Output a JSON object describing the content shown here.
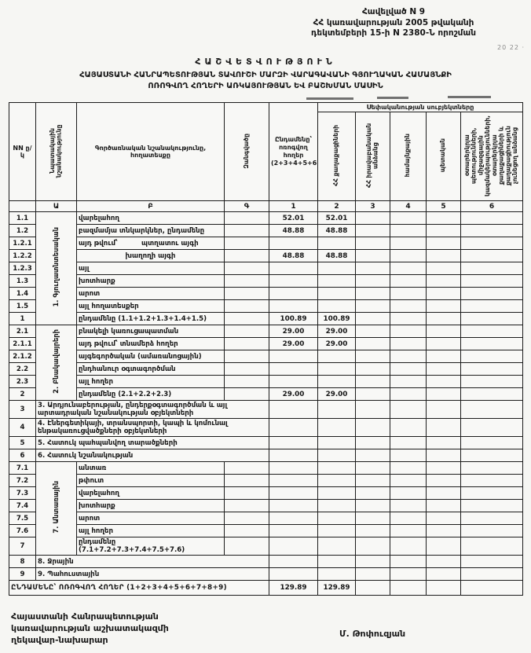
{
  "annex": {
    "lines": [
      "Հավելված N 9",
      "ՀՀ կառավարության 2005 թվականի",
      "դեկտեմբերի 15-ի N 2380-Ն որոշման"
    ],
    "note": "20 22 ·"
  },
  "title": {
    "heading": "ՀԱՇՎԵՏՎՈՒԹՅՈՒՆ",
    "line1": "ՀԱՅԱՍՏԱՆԻ ՀԱՆՐԱՊԵՏՈՒԹՅԱՆ ՏԱՎՈՒՇԻ ՄԱՐԶԻ ՎԱՐԱԳԱՎԱՆԻ ԳՅՈՒՂԱԿԱՆ ՀԱՄԱՅՆՔԻ",
    "line2": "ՈՌՈԳՎՈՂ ՀՈՂԵՐԻ ԱՌԿԱՅՈՒԹՅԱՆ ԵՎ ԲԱՇԽՄԱՆ ՄԱՍԻՆ"
  },
  "table": {
    "head": {
      "nn": "NN ը/կ",
      "purpose": "Նպատակային նշանակությունը",
      "functional": "Գործառնական նշանակությունը, հողատեսքը",
      "massif": "Զանգվածը",
      "total": "Ընդամենը՝ ոռոգվող հողեր (2+3+4+5+6)",
      "ownership_group": "Սեփականության սուբյեկտները",
      "owners": [
        "ՀՀ քաղաքացիների",
        "ՀՀ իրավաբանական անձանց",
        "համայնքային",
        "պետական",
        "օտարերկրյա պետությունների, միջազգային կազմակերպությունների, օտարերկրյա քաղաքացիների և քաղաքացիություն չունեցող անձանց"
      ],
      "index_row": [
        "",
        "Ա",
        "Բ",
        "Գ",
        "1",
        "2",
        "3",
        "4",
        "5",
        "6"
      ]
    },
    "rows": [
      {
        "no": "1.1",
        "section": {
          "label": "1. Գյուղատնտեսական",
          "rows": 9
        },
        "desc": "վարելահող",
        "v": [
          "52.01",
          "52.01"
        ]
      },
      {
        "no": "1.2",
        "desc": "բազմամյա տնկարկներ, ընդամենը",
        "v": [
          "48.88",
          "48.88"
        ]
      },
      {
        "no": "1.2.1",
        "prefix": "այդ թվում՝",
        "desc": "պտղատու այգի"
      },
      {
        "no": "1.2.2",
        "desc": "խաղողի այգի",
        "center": true,
        "v": [
          "48.88",
          "48.88"
        ]
      },
      {
        "no": "1.2.3",
        "desc": "այլ"
      },
      {
        "no": "1.3",
        "desc": "խոտհարք"
      },
      {
        "no": "1.4",
        "desc": "արոտ"
      },
      {
        "no": "1.5",
        "desc": "այլ հողատեսքեր"
      },
      {
        "no": "1",
        "desc": "ընդամենը (1.1+1.2+1.3+1.4+1.5)",
        "v": [
          "100.89",
          "100.89"
        ]
      },
      {
        "no": "2.1",
        "section": {
          "label": "2. Բնակավայրերի",
          "rows": 6
        },
        "desc": "բնակելի կառուցապատման",
        "v": [
          "29.00",
          "29.00"
        ]
      },
      {
        "no": "2.1.1",
        "desc": "այդ թվում՝ տնամերձ հողեր",
        "v": [
          "29.00",
          "29.00"
        ]
      },
      {
        "no": "2.1.2",
        "desc": "այգեգործական (ամառանոցային)"
      },
      {
        "no": "2.2",
        "desc": "ընդհանուր օգտագործման"
      },
      {
        "no": "2.3",
        "desc": "այլ հողեր"
      },
      {
        "no": "2",
        "desc": "ընդամենը (2.1+2.2+2.3)",
        "v": [
          "29.00",
          "29.00"
        ]
      },
      {
        "no": "3",
        "wide": true,
        "desc": "3. Արդյունաբերության, ընդերքօգտագործման և այլ արտադրական նշանակության օբյեկտների"
      },
      {
        "no": "4",
        "wide": true,
        "desc": "4. Էներգետիկայի, տրանսպորտի, կապի և կոմունալ ենթակառուցվածքների օբյեկտների"
      },
      {
        "no": "5",
        "wide": true,
        "desc": "5. Հատուկ պահպանվող տարածքների"
      },
      {
        "no": "6",
        "wide": true,
        "desc": "6. Հատուկ նշանակության"
      },
      {
        "no": "7.1",
        "section": {
          "label": "7. Անտառային",
          "rows": 7
        },
        "desc": "անտառ"
      },
      {
        "no": "7.2",
        "desc": "թփուտ"
      },
      {
        "no": "7.3",
        "desc": "վարելահող"
      },
      {
        "no": "7.4",
        "desc": "խոտհարք"
      },
      {
        "no": "7.5",
        "desc": "արոտ"
      },
      {
        "no": "7.6",
        "desc": "այլ հողեր"
      },
      {
        "no": "7",
        "desc": "ընդամենը (7.1+7.2+7.3+7.4+7.5+7.6)"
      },
      {
        "no": "8",
        "wide": true,
        "desc": "8. Ջրային"
      },
      {
        "no": "9",
        "wide": true,
        "desc": "9. Պահուստային"
      }
    ],
    "grand": {
      "label": "ԸՆԴԱՄԵՆԸ՝ ՈՌՈԳՎՈՂ ՀՈՂԵՐ (1+2+3+4+5+6+7+8+9)",
      "v": [
        "129.89",
        "129.89"
      ]
    }
  },
  "footer": {
    "left_lines": [
      "Հայաստանի Հանրապետության",
      "կառավարության աշխատակազմի",
      "ղեկավար-նախարար"
    ],
    "signature": "Մ. Թոփուզյան"
  }
}
